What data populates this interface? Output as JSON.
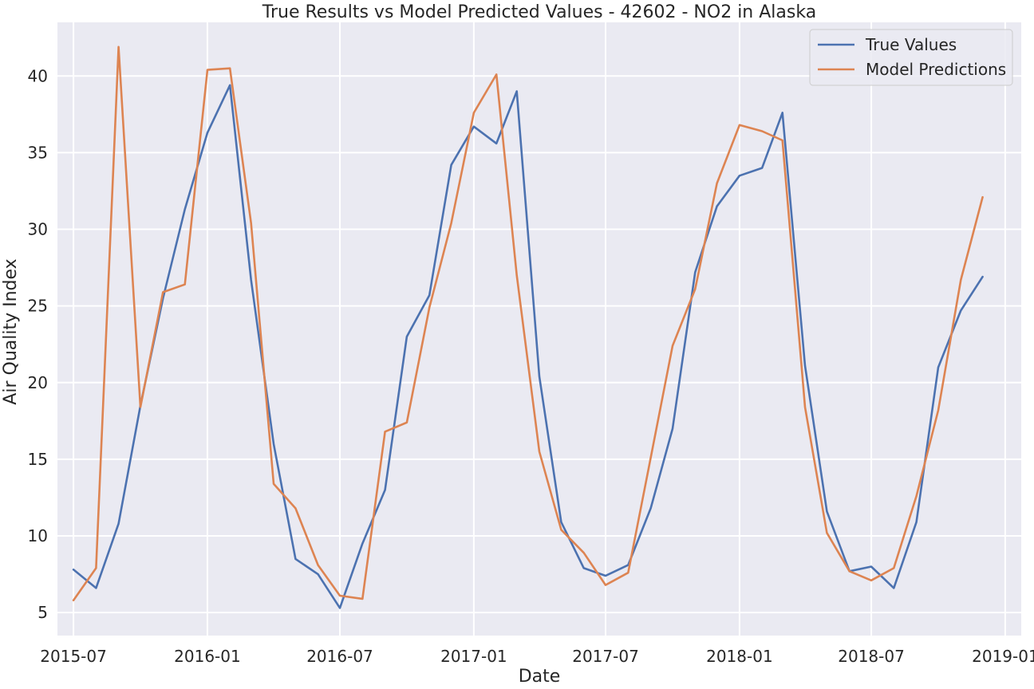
{
  "chart_data": {
    "type": "line",
    "title": "True Results vs Model Predicted Values - 42602 - NO2 in Alaska",
    "xlabel": "Date",
    "ylabel": "Air Quality Index",
    "x": [
      "2015-07",
      "2015-08",
      "2015-09",
      "2015-10",
      "2015-11",
      "2015-12",
      "2016-01",
      "2016-02",
      "2016-03",
      "2016-04",
      "2016-05",
      "2016-06",
      "2016-07",
      "2016-08",
      "2016-09",
      "2016-10",
      "2016-11",
      "2016-12",
      "2017-01",
      "2017-02",
      "2017-03",
      "2017-04",
      "2017-05",
      "2017-06",
      "2017-07",
      "2017-08",
      "2017-09",
      "2017-10",
      "2017-11",
      "2017-12",
      "2018-01",
      "2018-02",
      "2018-03",
      "2018-04",
      "2018-05",
      "2018-06",
      "2018-07",
      "2018-08",
      "2018-09",
      "2018-10",
      "2018-11",
      "2018-12"
    ],
    "series": [
      {
        "name": "True Values",
        "color": "#4c72b0",
        "values": [
          7.8,
          6.6,
          10.8,
          18.5,
          25.5,
          31.3,
          36.3,
          39.4,
          26.7,
          16.0,
          8.5,
          7.5,
          5.3,
          9.5,
          13.0,
          23.0,
          25.7,
          34.2,
          36.7,
          35.6,
          39.0,
          20.4,
          10.9,
          7.9,
          7.4,
          8.1,
          11.8,
          17.0,
          27.2,
          31.5,
          33.5,
          34.0,
          37.6,
          21.1,
          11.6,
          7.7,
          8.0,
          6.6,
          10.9,
          21.0,
          24.7,
          26.9
        ]
      },
      {
        "name": "Model Predictions",
        "color": "#dd8452",
        "values": [
          5.8,
          7.9,
          41.9,
          18.4,
          25.9,
          26.4,
          40.4,
          40.5,
          30.4,
          13.4,
          11.8,
          8.1,
          6.1,
          5.9,
          16.8,
          17.4,
          24.9,
          30.4,
          37.6,
          40.1,
          27.0,
          15.5,
          10.4,
          8.9,
          6.8,
          7.6,
          15.1,
          22.4,
          26.1,
          33.0,
          36.8,
          36.4,
          35.8,
          18.4,
          10.2,
          7.7,
          7.1,
          7.9,
          12.6,
          18.2,
          26.7,
          32.1
        ]
      }
    ],
    "xticks": [
      "2015-07",
      "2016-01",
      "2016-07",
      "2017-01",
      "2017-07",
      "2018-01",
      "2018-07",
      "2019-01"
    ],
    "yticks": [
      5,
      10,
      15,
      20,
      25,
      30,
      35,
      40
    ],
    "ylim": [
      3.5,
      43.5
    ],
    "xlim": [
      "2015-06-09",
      "2019-01-23"
    ],
    "grid": true,
    "legend": "top-right",
    "background": "#eaeaf2",
    "grid_color": "#ffffff"
  }
}
